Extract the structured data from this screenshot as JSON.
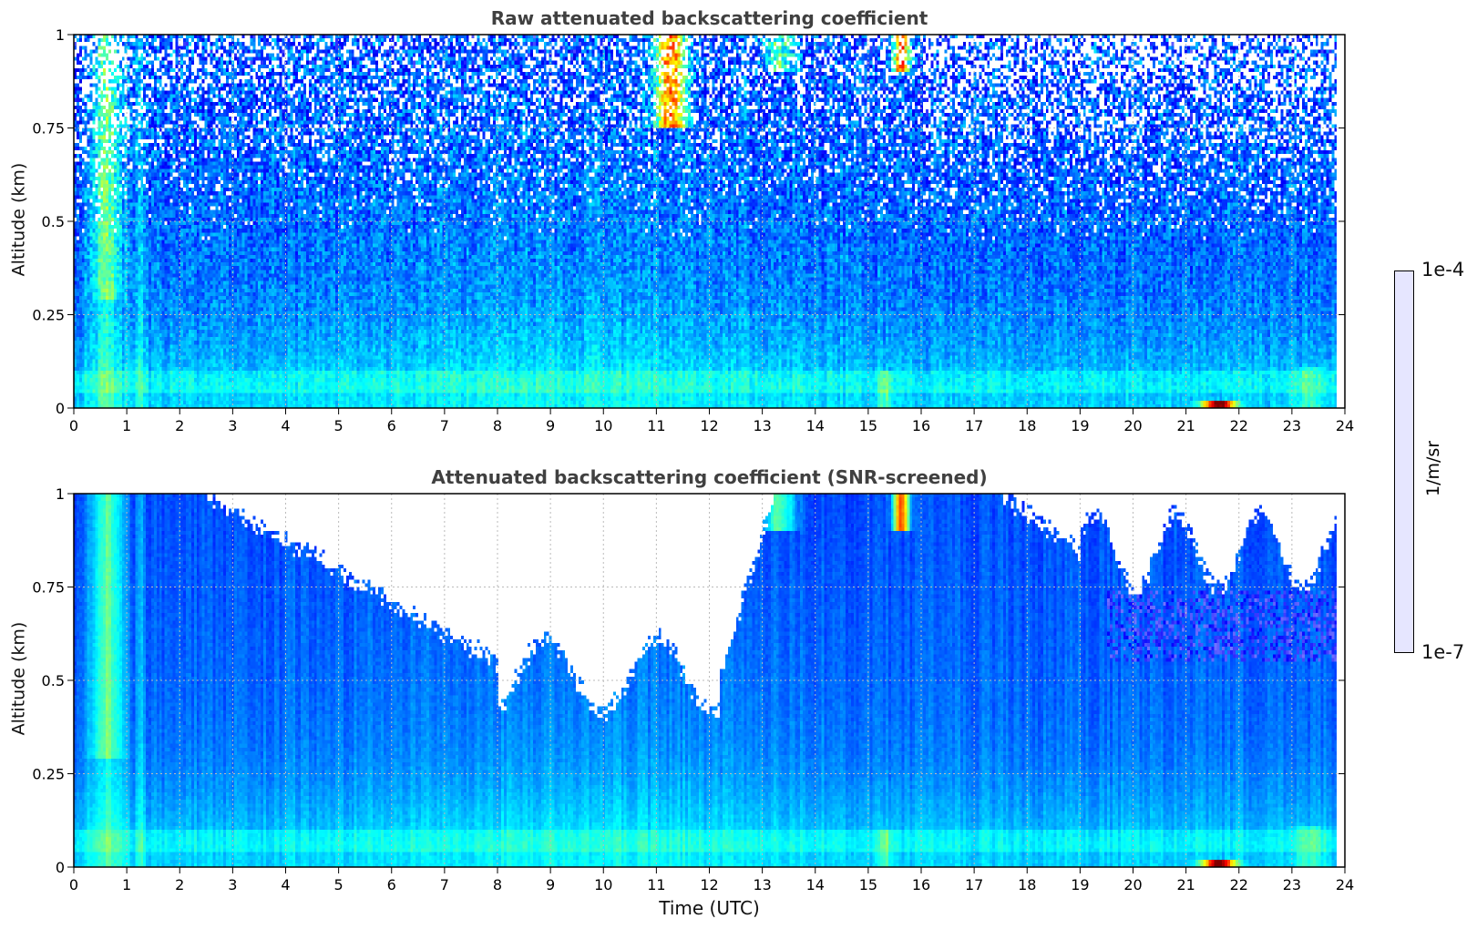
{
  "chart_data": [
    {
      "type": "heatmap",
      "title": "Raw attenuated backscattering coefficient",
      "xlabel": "",
      "ylabel": "Altitude (km)",
      "xlim": [
        0,
        24
      ],
      "ylim": [
        0,
        1
      ],
      "xticks": [
        "0",
        "1",
        "2",
        "3",
        "4",
        "5",
        "6",
        "7",
        "8",
        "9",
        "10",
        "11",
        "12",
        "13",
        "14",
        "15",
        "16",
        "17",
        "18",
        "19",
        "20",
        "21",
        "22",
        "23",
        "24"
      ],
      "yticks": [
        "0",
        "0.25",
        "0.5",
        "0.75",
        "1"
      ],
      "data_end_hour": 23.8,
      "grid": true,
      "screened": false
    },
    {
      "type": "heatmap",
      "title": "Attenuated backscattering coefficient (SNR-screened)",
      "xlabel": "Time (UTC)",
      "ylabel": "Altitude (km)",
      "xlim": [
        0,
        24
      ],
      "ylim": [
        0,
        1
      ],
      "xticks": [
        "0",
        "1",
        "2",
        "3",
        "4",
        "5",
        "6",
        "7",
        "8",
        "9",
        "10",
        "11",
        "12",
        "13",
        "14",
        "15",
        "16",
        "17",
        "18",
        "19",
        "20",
        "21",
        "22",
        "23",
        "24"
      ],
      "yticks": [
        "0",
        "0.25",
        "0.5",
        "0.75",
        "1"
      ],
      "data_end_hour": 23.8,
      "grid": true,
      "screened": true
    }
  ],
  "colorbar": {
    "label": "1/m/sr",
    "min_label": "1e-7",
    "max_label": "1e-4",
    "min": 1e-07,
    "max": 0.0001,
    "scale": "log",
    "colormap": "jet"
  }
}
